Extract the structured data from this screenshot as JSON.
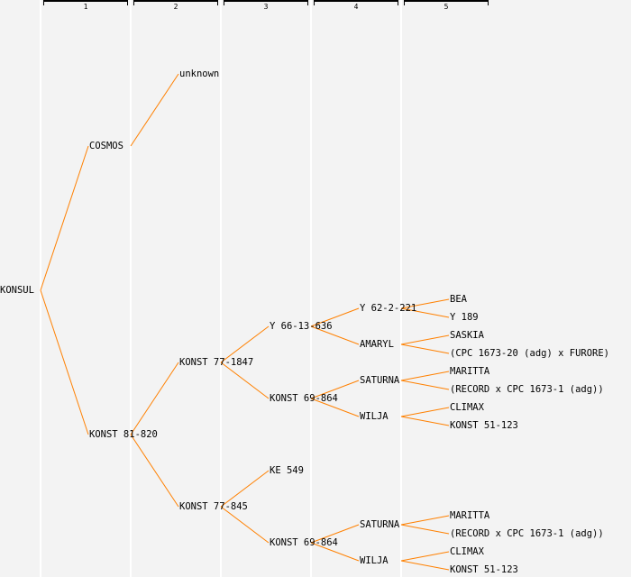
{
  "generation_headers": [
    "1",
    "2",
    "3",
    "4",
    "5"
  ],
  "colors": {
    "line": "#ff8000",
    "background": "#f3f3f3",
    "separator": "#ffffff"
  },
  "pedigree": {
    "name": "KONSUL",
    "parents": [
      {
        "name": "COSMOS",
        "parents": [
          {
            "name": "unknown"
          }
        ]
      },
      {
        "name": "KONST 81-820",
        "parents": [
          {
            "name": "KONST 77-1847",
            "parents": [
              {
                "name": "Y 66-13-636",
                "parents": [
                  {
                    "name": "Y 62-2-221",
                    "parents": [
                      {
                        "name": "BEA"
                      },
                      {
                        "name": "Y 189"
                      }
                    ]
                  },
                  {
                    "name": "AMARYL",
                    "parents": [
                      {
                        "name": "SASKIA"
                      },
                      {
                        "name": "(CPC 1673-20 (adg) x FURORE)"
                      }
                    ]
                  }
                ]
              },
              {
                "name": "KONST 69-864",
                "parents": [
                  {
                    "name": "SATURNA",
                    "parents": [
                      {
                        "name": "MARITTA"
                      },
                      {
                        "name": "(RECORD x CPC 1673-1 (adg))"
                      }
                    ]
                  },
                  {
                    "name": "WILJA",
                    "parents": [
                      {
                        "name": "CLIMAX"
                      },
                      {
                        "name": "KONST 51-123"
                      }
                    ]
                  }
                ]
              }
            ]
          },
          {
            "name": "KONST 77-845",
            "parents": [
              {
                "name": "KE 549"
              },
              {
                "name": "KONST 69-864",
                "parents": [
                  {
                    "name": "SATURNA",
                    "parents": [
                      {
                        "name": "MARITTA"
                      },
                      {
                        "name": "(RECORD x CPC 1673-1 (adg))"
                      }
                    ]
                  },
                  {
                    "name": "WILJA",
                    "parents": [
                      {
                        "name": "CLIMAX"
                      },
                      {
                        "name": "KONST 51-123"
                      }
                    ]
                  }
                ]
              }
            ]
          }
        ]
      }
    ]
  }
}
